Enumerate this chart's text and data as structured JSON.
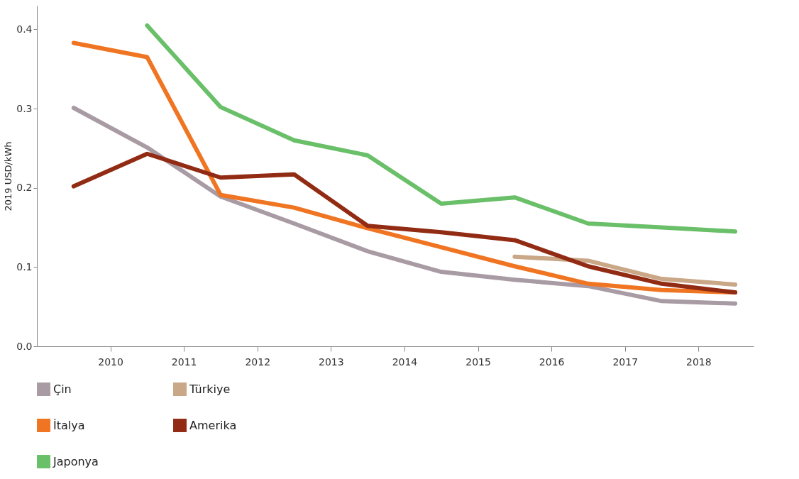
{
  "chart_data": {
    "type": "line",
    "ylabel": "2019 USD/kWh",
    "x": [
      2009.5,
      2010.5,
      2011.5,
      2012.5,
      2013.5,
      2014.5,
      2015.5,
      2016.5,
      2017.5,
      2018.5
    ],
    "xlim": [
      2009,
      2018.75
    ],
    "xticks": [
      2010,
      2011,
      2012,
      2013,
      2014,
      2015,
      2016,
      2017,
      2018
    ],
    "ylim": [
      0,
      0.43
    ],
    "yticks": [
      {
        "value": 0,
        "label": "0.0"
      },
      {
        "value": 0.1,
        "label": "0.1"
      },
      {
        "value": 0.2,
        "label": "0.2"
      },
      {
        "value": 0.3,
        "label": "0.3"
      },
      {
        "value": 0.4,
        "label": "0.4"
      }
    ],
    "grid": false,
    "legend": "bottom",
    "marker": "none",
    "line_style": "solid",
    "series": [
      {
        "name": "Çin",
        "color": "#a99ba3",
        "values": [
          0.301,
          0.251,
          0.189,
          0.155,
          0.12,
          0.094,
          0.084,
          0.076,
          0.057,
          0.054
        ]
      },
      {
        "name": "İtalya",
        "color": "#f07522",
        "values": [
          0.383,
          0.365,
          0.191,
          0.175,
          0.149,
          0.125,
          0.101,
          0.079,
          0.071,
          0.068
        ]
      },
      {
        "name": "Japonya",
        "color": "#6abf69",
        "values": [
          null,
          0.405,
          0.302,
          0.26,
          0.241,
          0.18,
          0.188,
          0.155,
          0.15,
          0.145
        ]
      },
      {
        "name": "Türkiye",
        "color": "#c9a787",
        "values": [
          null,
          null,
          null,
          null,
          null,
          null,
          0.113,
          0.108,
          0.085,
          0.078
        ]
      },
      {
        "name": "Amerika",
        "color": "#922b13",
        "values": [
          0.202,
          0.243,
          0.213,
          0.217,
          0.152,
          0.144,
          0.134,
          0.101,
          0.079,
          0.068
        ]
      }
    ]
  }
}
